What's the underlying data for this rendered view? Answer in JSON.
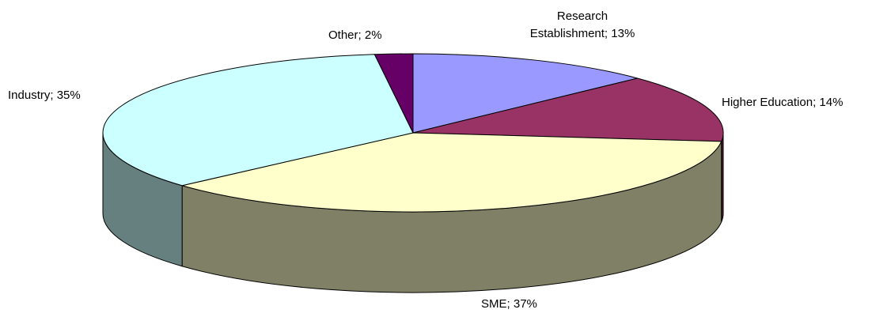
{
  "chart_data": {
    "type": "pie",
    "three_d": true,
    "categories": [
      "Research Establishment",
      "Higher Education",
      "SME",
      "Industry",
      "Other"
    ],
    "values": [
      13,
      14,
      37,
      35,
      2
    ],
    "value_labels": [
      "13%",
      "14%",
      "37%",
      "35%",
      "2%"
    ],
    "label_separator": "; ",
    "colors": [
      "#9999ff",
      "#993366",
      "#ffffcc",
      "#ccffff",
      "#660066"
    ]
  }
}
